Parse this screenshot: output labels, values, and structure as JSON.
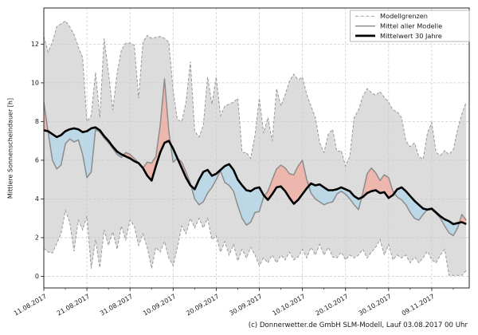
{
  "caption": "(c) Donnerwetter.de GmbH SLM-Modell, Lauf 03.08.2017 00 Uhr",
  "chart_data": {
    "type": "line",
    "title": "",
    "ylabel": "Mittlere Sonnenscheindauer [h]",
    "xlabel": "",
    "grid": true,
    "ylim": [
      -0.6,
      13.87
    ],
    "yticks": [
      0,
      2,
      4,
      6,
      8,
      10,
      12
    ],
    "xlim": [
      0,
      98.7
    ],
    "x_unit": "Tage ab 11.08.2017 (Index = Tag)",
    "xticks": [
      {
        "day": 0,
        "label": "11.08.2017"
      },
      {
        "day": 10,
        "label": "21.08.2017"
      },
      {
        "day": 20,
        "label": "31.08.2017"
      },
      {
        "day": 30,
        "label": "10.09.2017"
      },
      {
        "day": 40,
        "label": "20.09.2017"
      },
      {
        "day": 50,
        "label": "30.09.2017"
      },
      {
        "day": 60,
        "label": "10.10.2017"
      },
      {
        "day": 70,
        "label": "20.10.2017"
      },
      {
        "day": 80,
        "label": "30.10.2017"
      },
      {
        "day": 90,
        "label": "09.11.2017"
      }
    ],
    "xminor_days": [
      5,
      15,
      25,
      35,
      45,
      55,
      65,
      75,
      85,
      95
    ],
    "legend": {
      "position": "top-right",
      "entries": [
        {
          "label": "Modellgrenzen",
          "style": "dashed-gray"
        },
        {
          "label": "Mittel aller Modelle",
          "style": "solid-gray"
        },
        {
          "label": "Mittelwert 30 Jahre",
          "style": "solid-black-thick"
        }
      ]
    },
    "colors": {
      "envelope_fill": "#dcdcdc",
      "envelope_edge": "#999999",
      "model_mean_line": "#8c8c8c",
      "climate_mean_line": "#000000",
      "above_normal_fill": "#f0b2a8",
      "below_normal_fill": "#b8d7e8",
      "grid": "#c9c9c9",
      "spine": "#262626",
      "legend_border": "#b3b3b3",
      "tick_text": "#1a1a1a"
    },
    "series": [
      {
        "name": "Modellgrenzen (oben)",
        "role": "upper",
        "values": [
          12.4,
          11.6,
          12.1,
          12.9,
          13.05,
          13.2,
          12.9,
          12.5,
          11.85,
          11.3,
          8.0,
          8.3,
          10.55,
          8.2,
          12.3,
          10.5,
          8.6,
          10.5,
          11.7,
          12.05,
          12.05,
          11.95,
          9.2,
          12.1,
          12.45,
          12.3,
          12.35,
          12.4,
          12.3,
          12.1,
          9.6,
          8.1,
          8.0,
          9.0,
          11.1,
          7.5,
          7.2,
          7.8,
          10.3,
          8.9,
          10.3,
          8.3,
          8.8,
          8.9,
          9.0,
          9.2,
          6.4,
          6.4,
          6.1,
          7.3,
          9.2,
          7.4,
          8.2,
          7.0,
          9.7,
          8.8,
          9.4,
          10.1,
          10.45,
          10.15,
          10.3,
          9.4,
          8.8,
          8.2,
          6.9,
          6.4,
          7.35,
          7.6,
          6.45,
          6.5,
          5.7,
          6.2,
          8.2,
          8.6,
          9.3,
          9.7,
          9.5,
          9.35,
          9.55,
          9.25,
          9.0,
          8.6,
          8.5,
          8.2,
          7.0,
          6.7,
          6.9,
          6.2,
          6.05,
          7.4,
          7.95,
          6.4,
          6.25,
          6.5,
          6.3,
          6.55,
          7.6,
          8.4,
          9.0
        ]
      },
      {
        "name": "Modellgrenzen (unten)",
        "role": "lower",
        "values": [
          1.45,
          1.25,
          1.2,
          1.7,
          2.2,
          3.4,
          2.8,
          1.3,
          2.9,
          2.4,
          3.1,
          0.4,
          1.9,
          0.45,
          2.4,
          1.6,
          2.3,
          1.4,
          2.6,
          1.9,
          2.9,
          2.6,
          1.6,
          2.2,
          1.5,
          0.4,
          1.5,
          1.25,
          1.8,
          0.95,
          0.55,
          1.5,
          2.6,
          2.2,
          3.0,
          2.5,
          3.0,
          2.5,
          3.0,
          1.9,
          2.1,
          1.25,
          1.8,
          1.1,
          1.65,
          0.8,
          1.4,
          0.95,
          1.5,
          1.1,
          0.55,
          0.95,
          0.7,
          1.1,
          0.7,
          1.1,
          0.85,
          1.25,
          0.85,
          1.0,
          1.4,
          0.95,
          1.5,
          1.1,
          1.65,
          1.1,
          1.5,
          1.0,
          0.95,
          1.25,
          0.85,
          1.1,
          0.95,
          1.1,
          1.4,
          0.95,
          1.25,
          1.5,
          1.9,
          1.1,
          1.65,
          0.85,
          1.1,
          0.95,
          1.1,
          0.7,
          1.0,
          0.7,
          0.95,
          1.3,
          0.85,
          0.7,
          1.1,
          1.4,
          0.05,
          0.05,
          0.05,
          0.05,
          0.3
        ]
      },
      {
        "name": "Mittel aller Modelle",
        "role": "mean",
        "values": [
          9.0,
          7.45,
          6.0,
          5.55,
          5.75,
          6.85,
          7.1,
          6.95,
          7.05,
          6.3,
          5.1,
          5.4,
          7.6,
          7.45,
          7.15,
          6.9,
          6.6,
          6.3,
          6.15,
          6.4,
          6.3,
          6.1,
          5.85,
          5.6,
          5.9,
          5.85,
          6.2,
          7.8,
          10.2,
          7.5,
          5.9,
          6.1,
          5.9,
          5.4,
          4.8,
          4.0,
          3.7,
          3.85,
          4.3,
          4.6,
          5.0,
          5.45,
          4.85,
          4.7,
          4.4,
          3.65,
          3.0,
          2.65,
          2.8,
          3.3,
          3.35,
          4.1,
          4.4,
          5.0,
          5.55,
          5.75,
          5.6,
          5.3,
          5.25,
          5.7,
          6.0,
          5.0,
          4.3,
          4.0,
          3.85,
          3.7,
          3.8,
          3.85,
          4.25,
          4.4,
          4.25,
          4.0,
          3.7,
          3.45,
          4.3,
          5.3,
          5.6,
          5.35,
          4.95,
          5.25,
          5.1,
          4.4,
          4.1,
          3.95,
          3.7,
          3.3,
          3.0,
          2.9,
          3.2,
          3.45,
          3.45,
          3.25,
          3.0,
          2.6,
          2.25,
          2.1,
          2.5,
          3.2,
          2.9
        ]
      },
      {
        "name": "Mittelwert 30 Jahre",
        "role": "mean30",
        "values": [
          7.55,
          7.5,
          7.35,
          7.2,
          7.3,
          7.5,
          7.6,
          7.65,
          7.6,
          7.45,
          7.5,
          7.65,
          7.7,
          7.55,
          7.25,
          7.0,
          6.7,
          6.45,
          6.3,
          6.2,
          6.1,
          5.95,
          5.85,
          5.6,
          5.2,
          4.95,
          5.7,
          6.4,
          6.9,
          7.0,
          6.6,
          6.1,
          5.6,
          5.1,
          4.7,
          4.5,
          5.0,
          5.4,
          5.5,
          5.2,
          5.3,
          5.5,
          5.7,
          5.8,
          5.5,
          5.0,
          4.7,
          4.45,
          4.4,
          4.55,
          4.6,
          4.2,
          3.95,
          4.25,
          4.6,
          4.65,
          4.4,
          4.05,
          3.75,
          3.95,
          4.25,
          4.55,
          4.8,
          4.7,
          4.75,
          4.6,
          4.45,
          4.45,
          4.5,
          4.6,
          4.5,
          4.4,
          4.15,
          4.0,
          4.1,
          4.3,
          4.4,
          4.45,
          4.3,
          4.35,
          4.05,
          4.2,
          4.5,
          4.6,
          4.4,
          4.15,
          3.9,
          3.7,
          3.5,
          3.45,
          3.5,
          3.3,
          3.1,
          2.95,
          2.85,
          2.7,
          2.75,
          2.8,
          2.7
        ]
      }
    ]
  }
}
